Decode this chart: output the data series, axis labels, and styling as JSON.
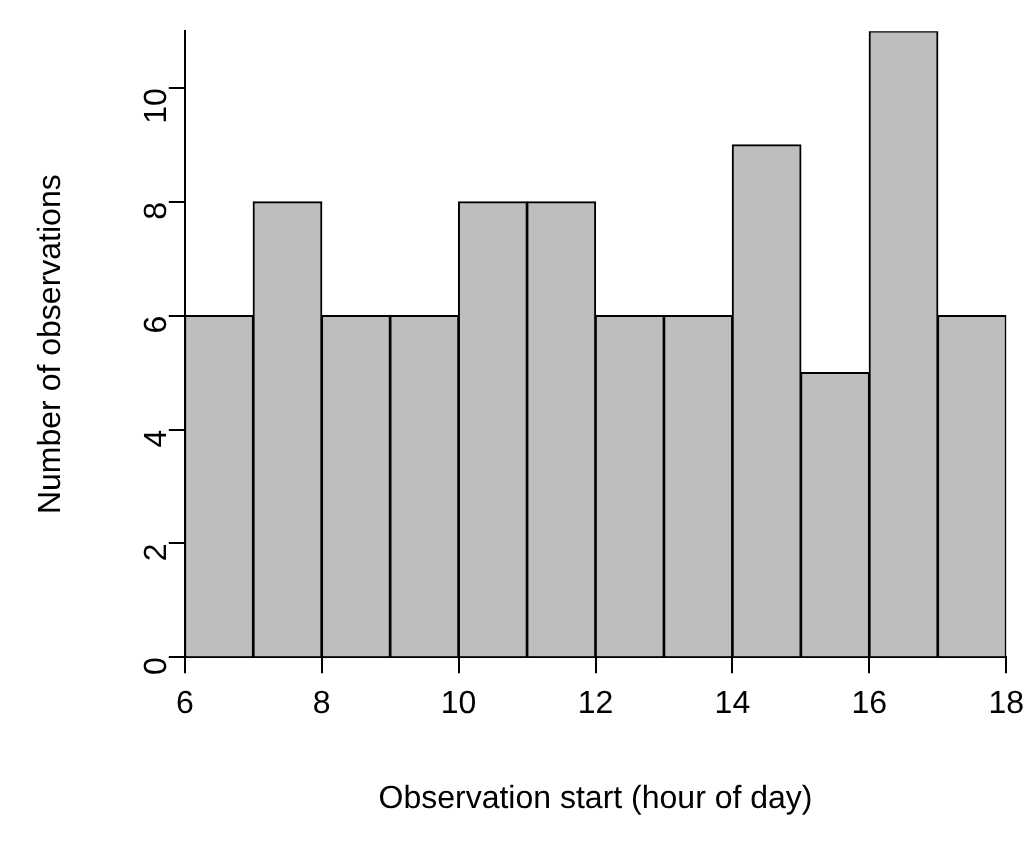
{
  "chart_data": {
    "type": "histogram",
    "xlabel": "Observation start (hour of day)",
    "ylabel": "Number of observations",
    "bins": [
      6,
      7,
      8,
      9,
      10,
      11,
      12,
      13,
      14,
      15,
      16,
      17,
      18
    ],
    "values": [
      6,
      8,
      6,
      6,
      8,
      8,
      6,
      6,
      9,
      5,
      11,
      6
    ],
    "color": "#bebebe",
    "xlim": [
      6,
      18
    ],
    "xticks": [
      6,
      8,
      10,
      12,
      14,
      16,
      18
    ],
    "ylim": [
      0,
      11
    ],
    "yticks": [
      0,
      2,
      4,
      6,
      8,
      10
    ],
    "grid": false,
    "legend": false
  }
}
